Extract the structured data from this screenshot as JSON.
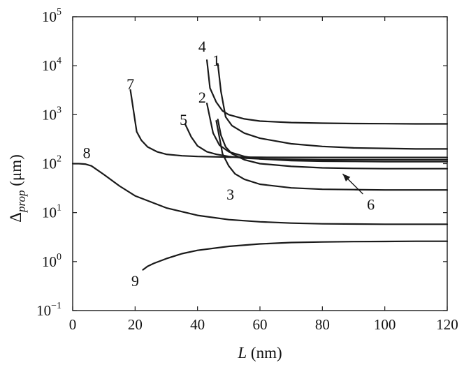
{
  "chart_data": {
    "type": "line",
    "xlabel_italic": "L",
    "xlabel_rest": " (nm)",
    "ylabel_main": "Δ",
    "ylabel_sub": "prop",
    "ylabel_rest": " (μm)",
    "xlim": [
      0,
      120
    ],
    "ylim": [
      0.1,
      100000
    ],
    "yscale": "log",
    "grid": false,
    "x_ticks": [
      {
        "value": 0,
        "label": "0"
      },
      {
        "value": 20,
        "label": "20"
      },
      {
        "value": 40,
        "label": "40"
      },
      {
        "value": 60,
        "label": "60"
      },
      {
        "value": 80,
        "label": "80"
      },
      {
        "value": 100,
        "label": "100"
      },
      {
        "value": 120,
        "label": "120"
      }
    ],
    "y_ticks": [
      {
        "value": 0.1,
        "base": "10",
        "exp": "−1"
      },
      {
        "value": 1,
        "base": "10",
        "exp": "0"
      },
      {
        "value": 10,
        "base": "10",
        "exp": "1"
      },
      {
        "value": 100,
        "base": "10",
        "exp": "2"
      },
      {
        "value": 1000,
        "base": "10",
        "exp": "3"
      },
      {
        "value": 10000,
        "base": "10",
        "exp": "4"
      },
      {
        "value": 100000,
        "base": "10",
        "exp": "5"
      }
    ],
    "series": [
      {
        "label": "1",
        "x": [
          46.5,
          47.5,
          49,
          51,
          55,
          60,
          70,
          80,
          90,
          100,
          110,
          120
        ],
        "y": [
          11000,
          3000,
          900,
          600,
          420,
          330,
          255,
          225,
          210,
          205,
          200,
          200
        ]
      },
      {
        "label": "2",
        "x": [
          43,
          44,
          45,
          47,
          50,
          55,
          60,
          70,
          80,
          90,
          100,
          110,
          120
        ],
        "y": [
          1700,
          850,
          420,
          240,
          175,
          140,
          125,
          115,
          112,
          111,
          110,
          110,
          110
        ]
      },
      {
        "label": "3",
        "x": [
          46,
          47,
          48,
          50,
          52,
          55,
          60,
          70,
          80,
          90,
          100,
          110,
          120
        ],
        "y": [
          750,
          350,
          160,
          90,
          62,
          48,
          38,
          32,
          30,
          29.5,
          29,
          29,
          29
        ]
      },
      {
        "label": "4",
        "x": [
          43,
          44,
          46,
          48,
          50,
          55,
          60,
          70,
          80,
          90,
          100,
          110,
          120
        ],
        "y": [
          13000,
          3500,
          1800,
          1200,
          1000,
          820,
          740,
          690,
          670,
          660,
          655,
          650,
          650
        ]
      },
      {
        "label": "5",
        "x": [
          36,
          38,
          40,
          43,
          46,
          50,
          55,
          60,
          70,
          80,
          90,
          100,
          110,
          120
        ],
        "y": [
          650,
          350,
          230,
          175,
          155,
          140,
          130,
          125,
          122,
          120,
          120,
          120,
          120,
          120
        ]
      },
      {
        "label": "6",
        "x": [
          46.5,
          47.5,
          49,
          51,
          55,
          60,
          70,
          80,
          90,
          100,
          110,
          120
        ],
        "y": [
          800,
          380,
          220,
          160,
          120,
          100,
          88,
          82,
          80,
          79,
          79,
          79
        ]
      },
      {
        "label": "7",
        "x": [
          18.5,
          19.5,
          20.5,
          22,
          24,
          27,
          30,
          35,
          40,
          50,
          60,
          80,
          100,
          120
        ],
        "y": [
          3200,
          1200,
          450,
          300,
          220,
          175,
          155,
          145,
          140,
          136,
          135,
          134,
          134,
          134
        ]
      },
      {
        "label": "8",
        "x": [
          0,
          2,
          4,
          6,
          10,
          15,
          20,
          30,
          40,
          50,
          60,
          70,
          80,
          100,
          120
        ],
        "y": [
          100,
          100,
          98,
          90,
          60,
          35,
          22,
          12.5,
          8.8,
          7.2,
          6.5,
          6.1,
          5.9,
          5.8,
          5.8
        ]
      },
      {
        "label": "9",
        "x": [
          22.5,
          24,
          26,
          30,
          35,
          40,
          50,
          60,
          70,
          80,
          90,
          100,
          110,
          120
        ],
        "y": [
          0.68,
          0.8,
          0.92,
          1.15,
          1.45,
          1.7,
          2.05,
          2.3,
          2.45,
          2.52,
          2.56,
          2.58,
          2.6,
          2.6
        ]
      }
    ],
    "annotations": [
      {
        "text": "1",
        "x": 46,
        "y": 13000
      },
      {
        "text": "2",
        "x": 41.5,
        "y": 2300
      },
      {
        "text": "3",
        "x": 50.5,
        "y": 24
      },
      {
        "text": "4",
        "x": 41.5,
        "y": 25000
      },
      {
        "text": "5",
        "x": 35.5,
        "y": 800
      },
      {
        "text": "6",
        "x": 95.5,
        "y": 15
      },
      {
        "text": "7",
        "x": 18.5,
        "y": 4300
      },
      {
        "text": "8",
        "x": 4.5,
        "y": 170
      },
      {
        "text": "9",
        "x": 20,
        "y": 0.41
      }
    ],
    "arrow": {
      "from": [
        93,
        24
      ],
      "to": [
        86.5,
        62
      ]
    }
  }
}
